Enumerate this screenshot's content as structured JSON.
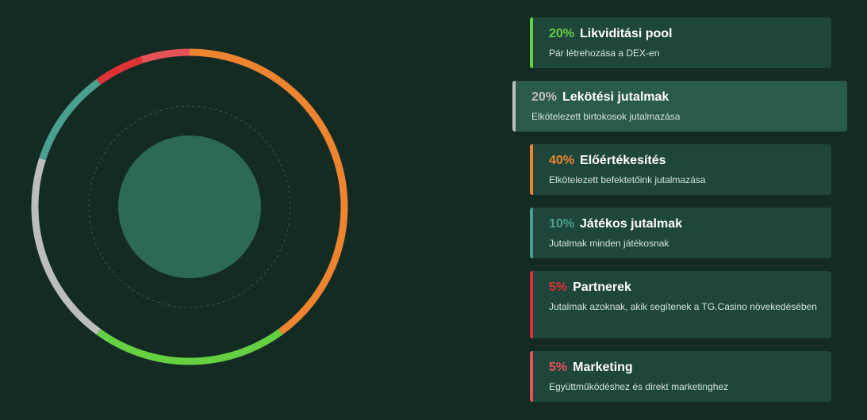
{
  "chart_data": {
    "type": "pie",
    "style": "donut",
    "start_angle_deg": 0,
    "direction": "clockwise",
    "segments": [
      {
        "value": 40,
        "color": "#ee8430"
      },
      {
        "value": 20,
        "color": "#66d043"
      },
      {
        "value": 20,
        "color": "#bdbdbd"
      },
      {
        "value": 10,
        "color": "#49a08c"
      },
      {
        "value": 5,
        "color": "#df3236"
      },
      {
        "value": 5,
        "color": "#e75258"
      }
    ]
  },
  "legend": {
    "items": [
      {
        "percent": "20%",
        "title": "Likviditási pool",
        "description": "Pár létrehozása a DEX-en",
        "color": "#66d043",
        "active": false
      },
      {
        "percent": "20%",
        "title": "Lekötési jutalmak",
        "description": "Elkötelezett birtokosok jutalmazása",
        "color": "#bdbdbd",
        "active": true
      },
      {
        "percent": "40%",
        "title": "Előértékesítés",
        "description": "Elkötelezett befektetőink jutalmazása",
        "color": "#ee8430",
        "active": false
      },
      {
        "percent": "10%",
        "title": "Játékos jutalmak",
        "description": "Jutalmak minden játékosnak",
        "color": "#49a08c",
        "active": false
      },
      {
        "percent": "5%",
        "title": "Partnerek",
        "description": "Jutalmak azoknak, akik segítenek a TG.Casino növekedésében",
        "color": "#df3236",
        "active": false
      },
      {
        "percent": "5%",
        "title": "Marketing",
        "description": "Együttműködéshez és direkt marketinghez",
        "color": "#e75258",
        "active": false
      }
    ]
  }
}
